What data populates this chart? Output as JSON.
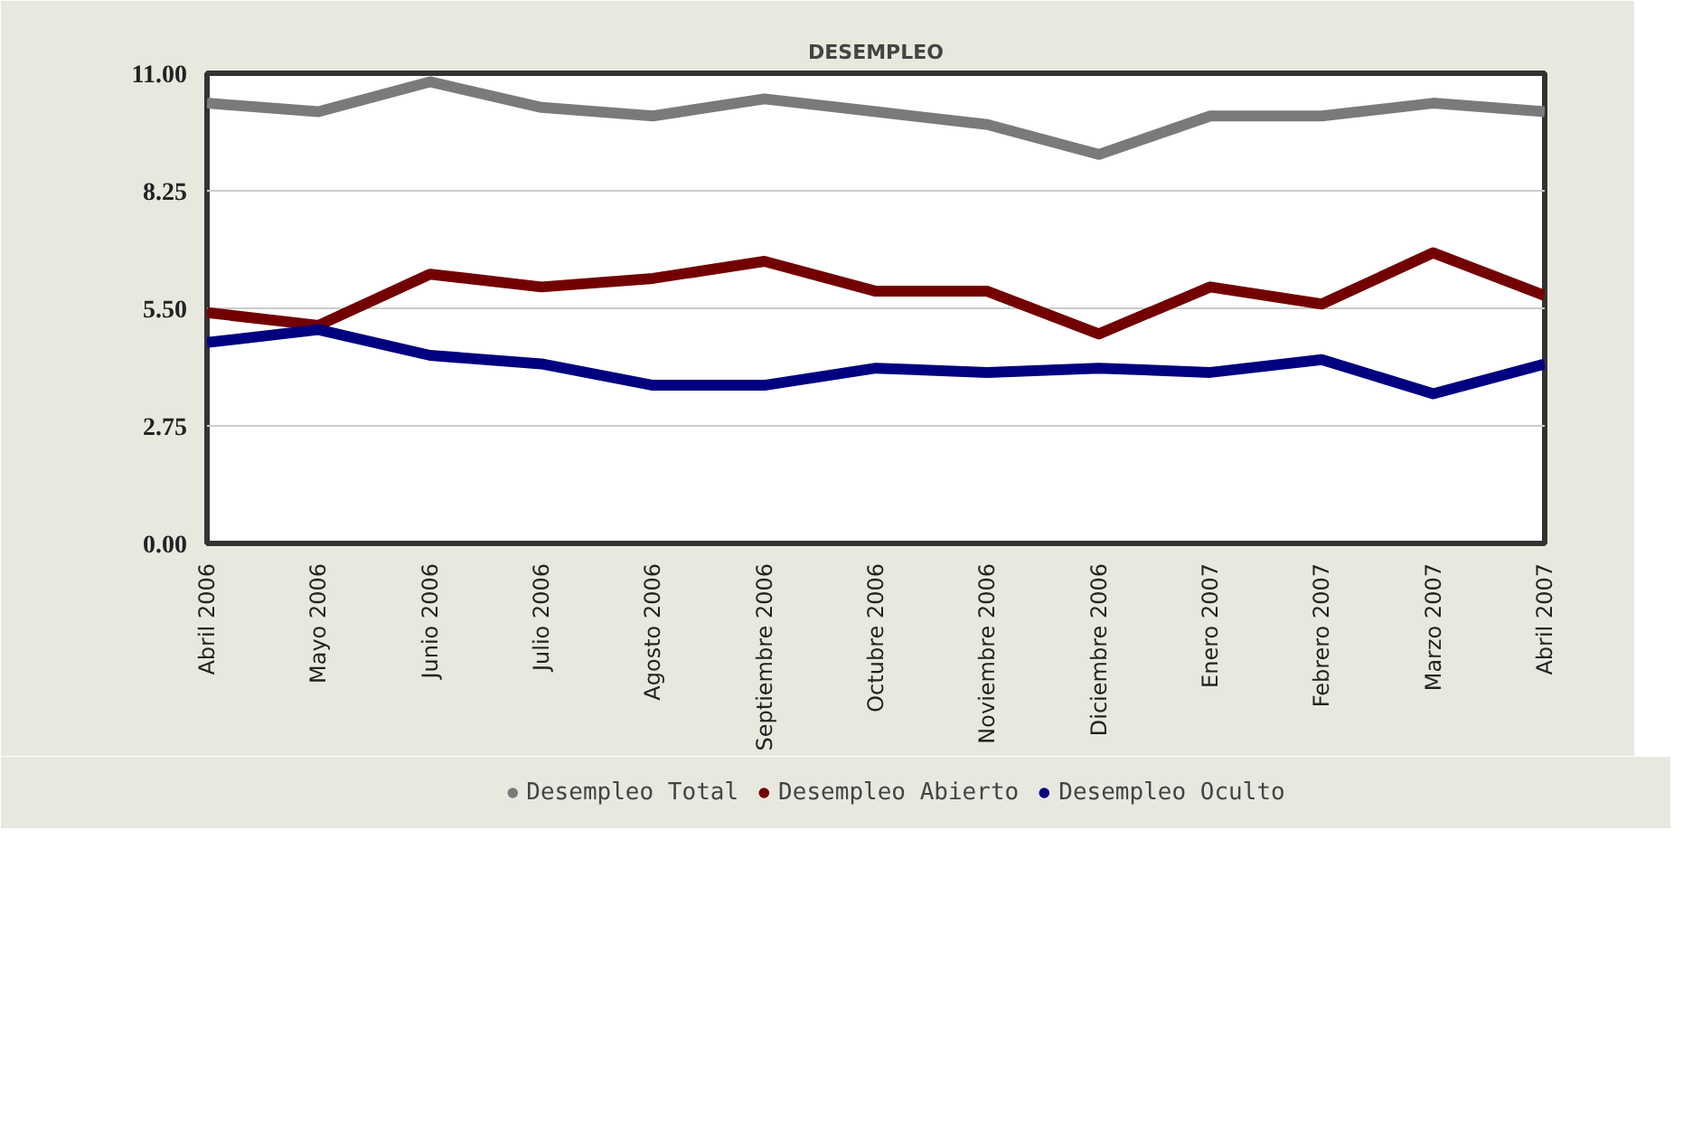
{
  "chart_data": {
    "type": "line",
    "title": "DESEMPLEO",
    "categories": [
      "Abril 2006",
      "Mayo 2006",
      "Junio 2006",
      "Julio 2006",
      "Agosto 2006",
      "Septiembre 2006",
      "Octubre 2006",
      "Noviembre 2006",
      "Diciembre 2006",
      "Enero 2007",
      "Febrero 2007",
      "Marzo 2007",
      "Abril 2007"
    ],
    "series": [
      {
        "name": "Desempleo Total",
        "color": "#7a7a7a",
        "values": [
          10.3,
          10.1,
          10.8,
          10.2,
          10.0,
          10.4,
          10.1,
          9.8,
          9.1,
          10.0,
          10.0,
          10.3,
          10.1
        ]
      },
      {
        "name": "Desempleo Abierto",
        "color": "#730000",
        "values": [
          5.4,
          5.1,
          6.3,
          6.0,
          6.2,
          6.6,
          5.9,
          5.9,
          4.9,
          6.0,
          5.6,
          6.8,
          5.8
        ]
      },
      {
        "name": "Desempleo Oculto",
        "color": "#000080",
        "values": [
          4.7,
          5.0,
          4.4,
          4.2,
          3.7,
          3.7,
          4.1,
          4.0,
          4.1,
          4.0,
          4.3,
          3.5,
          4.2
        ]
      }
    ],
    "ylim": [
      0,
      11
    ],
    "yticks": [
      {
        "value": 0,
        "label": "0.00"
      },
      {
        "value": 2.75,
        "label": "2.75"
      },
      {
        "value": 5.5,
        "label": "5.50"
      },
      {
        "value": 8.25,
        "label": "8.25"
      },
      {
        "value": 11,
        "label": "11.00"
      }
    ],
    "grid": "y",
    "legend": "bottom",
    "line_style": "solid"
  }
}
